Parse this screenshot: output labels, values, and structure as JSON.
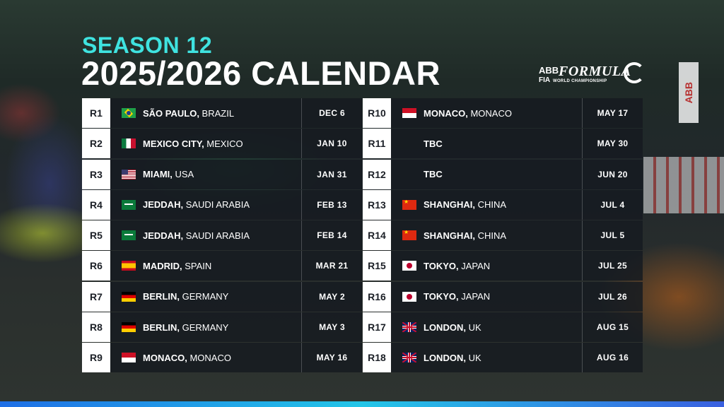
{
  "header": {
    "season": "SEASON 12",
    "title": "2025/2026 CALENDAR"
  },
  "logo": {
    "abb": "ABB",
    "fia": "FIA",
    "formula": "FORMULA",
    "subtitle": "WORLD CHAMPIONSHIP"
  },
  "background_sign": "ABB",
  "colors": {
    "accent": "#3fe3e0",
    "round_box": "#ffffff",
    "row_bg": "#161a20",
    "bottom_stripe": "#23c6e8"
  },
  "rounds_left": [
    {
      "round": "R1",
      "flag": "brazil-flag",
      "city": "SÃO PAULO,",
      "country": " BRAZIL",
      "date": "DEC 6"
    },
    {
      "round": "R2",
      "flag": "mexico-flag",
      "city": "MEXICO CITY,",
      "country": " MEXICO",
      "date": "JAN 10"
    },
    {
      "round": "R3",
      "flag": "usa-flag",
      "city": "MIAMI,",
      "country": " USA",
      "date": "JAN 31"
    },
    {
      "round": "R4",
      "flag": "saudi-arabia-flag",
      "city": "JEDDAH,",
      "country": " SAUDI ARABIA",
      "date": "FEB 13"
    },
    {
      "round": "R5",
      "flag": "saudi-arabia-flag",
      "city": "JEDDAH,",
      "country": " SAUDI ARABIA",
      "date": "FEB 14"
    },
    {
      "round": "R6",
      "flag": "spain-flag",
      "city": "MADRID,",
      "country": " SPAIN",
      "date": "MAR 21"
    },
    {
      "round": "R7",
      "flag": "germany-flag",
      "city": "BERLIN,",
      "country": " GERMANY",
      "date": "MAY 2"
    },
    {
      "round": "R8",
      "flag": "germany-flag",
      "city": "BERLIN,",
      "country": " GERMANY",
      "date": "MAY 3"
    },
    {
      "round": "R9",
      "flag": "monaco-flag",
      "city": "MONACO,",
      "country": " MONACO",
      "date": "MAY 16"
    }
  ],
  "rounds_right": [
    {
      "round": "R10",
      "flag": "monaco-flag",
      "city": "MONACO,",
      "country": " MONACO",
      "date": "MAY 17"
    },
    {
      "round": "R11",
      "flag": "",
      "city": "TBC",
      "country": "",
      "date": "MAY 30"
    },
    {
      "round": "R12",
      "flag": "",
      "city": "TBC",
      "country": "",
      "date": "JUN 20"
    },
    {
      "round": "R13",
      "flag": "china-flag",
      "city": "SHANGHAI,",
      "country": " CHINA",
      "date": "JUL 4"
    },
    {
      "round": "R14",
      "flag": "china-flag",
      "city": "SHANGHAI,",
      "country": " CHINA",
      "date": "JUL 5"
    },
    {
      "round": "R15",
      "flag": "japan-flag",
      "city": "TOKYO,",
      "country": " JAPAN",
      "date": "JUL 25"
    },
    {
      "round": "R16",
      "flag": "japan-flag",
      "city": "TOKYO,",
      "country": " JAPAN",
      "date": "JUL 26"
    },
    {
      "round": "R17",
      "flag": "uk-flag",
      "city": "LONDON,",
      "country": " UK",
      "date": "AUG 15"
    },
    {
      "round": "R18",
      "flag": "uk-flag",
      "city": "LONDON,",
      "country": " UK",
      "date": "AUG 16"
    }
  ]
}
